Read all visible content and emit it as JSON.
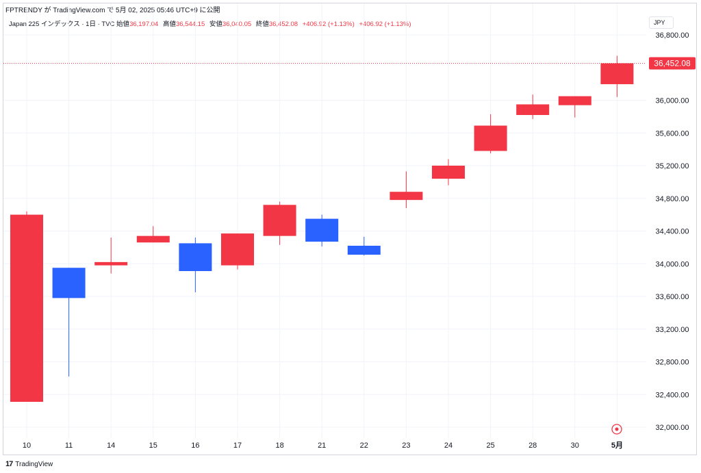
{
  "header": {
    "attribution": "FPTRENDY が TradingView.com で 5月 02, 2025 05:46 UTC+9 に公開"
  },
  "legend": {
    "symbol": "Japan 225 インデックス · 1日 · TVC",
    "open_label": "始値",
    "open": "36,197.04",
    "high_label": "高値",
    "high": "36,544.15",
    "low_label": "安値",
    "low": "36,040.05",
    "close_label": "終値",
    "close": "36,452.08",
    "change1": "+406.92 (+1.13%)",
    "change2": "+406.92 (+1.13%)"
  },
  "currency": "JPY",
  "last_price_label": "36,452.08",
  "footer": {
    "brand": "TradingView",
    "logo": "17"
  },
  "colors": {
    "up": "#f23645",
    "down": "#2962ff",
    "grid": "#f0f3fa",
    "price_line": "#f23645"
  },
  "chart_data": {
    "type": "candlestick",
    "x_tick_labels": [
      "10",
      "11",
      "14",
      "15",
      "16",
      "17",
      "18",
      "21",
      "22",
      "23",
      "24",
      "25",
      "28",
      "30",
      "5月"
    ],
    "y_tick_labels": [
      "32,000.00",
      "32,400.00",
      "32,800.00",
      "33,200.00",
      "33,600.00",
      "34,000.00",
      "34,400.00",
      "34,800.00",
      "35,200.00",
      "35,600.00",
      "36,000.00",
      "36,800.00"
    ],
    "ylim": [
      31980,
      36880
    ],
    "candles": [
      {
        "x": "10",
        "open": 32310,
        "high": 34640,
        "low": 32310,
        "close": 34600
      },
      {
        "x": "11",
        "open": 33950,
        "high": 33950,
        "low": 32620,
        "close": 33580
      },
      {
        "x": "14",
        "open": 33980,
        "high": 34320,
        "low": 33880,
        "close": 34020
      },
      {
        "x": "15",
        "open": 34260,
        "high": 34460,
        "low": 34260,
        "close": 34340
      },
      {
        "x": "16",
        "open": 34250,
        "high": 34320,
        "low": 33650,
        "close": 33910
      },
      {
        "x": "17",
        "open": 33980,
        "high": 34370,
        "low": 33930,
        "close": 34370
      },
      {
        "x": "18",
        "open": 34340,
        "high": 34760,
        "low": 34230,
        "close": 34720
      },
      {
        "x": "21",
        "open": 34550,
        "high": 34600,
        "low": 34210,
        "close": 34270
      },
      {
        "x": "22",
        "open": 34220,
        "high": 34330,
        "low": 34100,
        "close": 34110
      },
      {
        "x": "23",
        "open": 34780,
        "high": 35130,
        "low": 34680,
        "close": 34880
      },
      {
        "x": "24",
        "open": 35040,
        "high": 35280,
        "low": 34960,
        "close": 35200
      },
      {
        "x": "25",
        "open": 35380,
        "high": 35830,
        "low": 35350,
        "close": 35690
      },
      {
        "x": "28",
        "open": 35820,
        "high": 36070,
        "low": 35770,
        "close": 35950
      },
      {
        "x": "30",
        "open": 35940,
        "high": 36040,
        "low": 35790,
        "close": 36050
      },
      {
        "x": "5月",
        "open": 36197.04,
        "high": 36544.15,
        "low": 36040.05,
        "close": 36452.08
      }
    ]
  }
}
